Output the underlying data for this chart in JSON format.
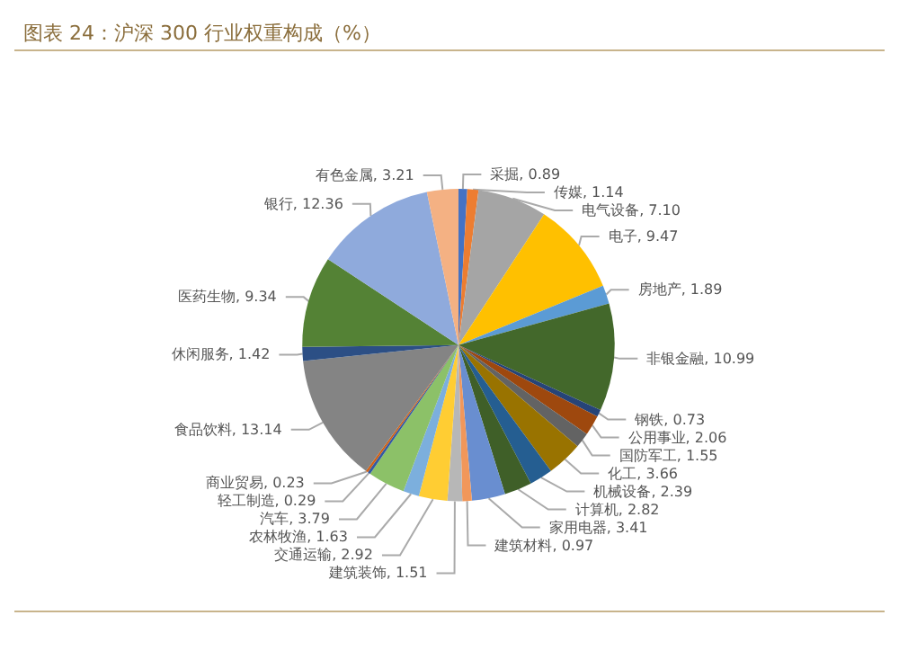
{
  "chart_data": {
    "type": "pie",
    "title": "图表 24：沪深 300 行业权重构成（%）",
    "categories": [
      "采掘",
      "传媒",
      "电气设备",
      "电子",
      "房地产",
      "非银金融",
      "钢铁",
      "公用事业",
      "国防军工",
      "化工",
      "机械设备",
      "计算机",
      "家用电器",
      "建筑材料",
      "建筑装饰",
      "交通运输",
      "农林牧渔",
      "汽车",
      "轻工制造",
      "商业贸易",
      "食品饮料",
      "休闲服务",
      "医药生物",
      "银行",
      "有色金属"
    ],
    "values": [
      0.89,
      1.14,
      7.1,
      9.47,
      1.89,
      10.99,
      0.73,
      2.06,
      1.55,
      3.66,
      2.39,
      2.82,
      3.41,
      0.97,
      1.51,
      2.92,
      1.63,
      3.79,
      0.29,
      0.23,
      13.14,
      1.42,
      9.34,
      12.36,
      3.21
    ],
    "value_labels": [
      "0.89",
      "1.14",
      "7.10",
      "9.47",
      "1.89",
      "10.99",
      "0.73",
      "2.06",
      "1.55",
      "3.66",
      "2.39",
      "2.82",
      "3.41",
      "0.97",
      "1.51",
      "2.92",
      "1.63",
      "3.79",
      "0.29",
      "0.23",
      "13.14",
      "1.42",
      "9.34",
      "12.36",
      "3.21"
    ],
    "colors": [
      "#4472c4",
      "#ed7d31",
      "#a5a5a5",
      "#ffc000",
      "#5b9bd5",
      "#43682b",
      "#264478",
      "#9e480e",
      "#636363",
      "#997300",
      "#255e91",
      "#3f5f28",
      "#698ed0",
      "#f1975a",
      "#b7b7b7",
      "#ffcd33",
      "#7cafdd",
      "#8cc168",
      "#335aa1",
      "#d26012",
      "#848484",
      "#2c4f85",
      "#548235",
      "#8faadc",
      "#f4b183"
    ]
  }
}
